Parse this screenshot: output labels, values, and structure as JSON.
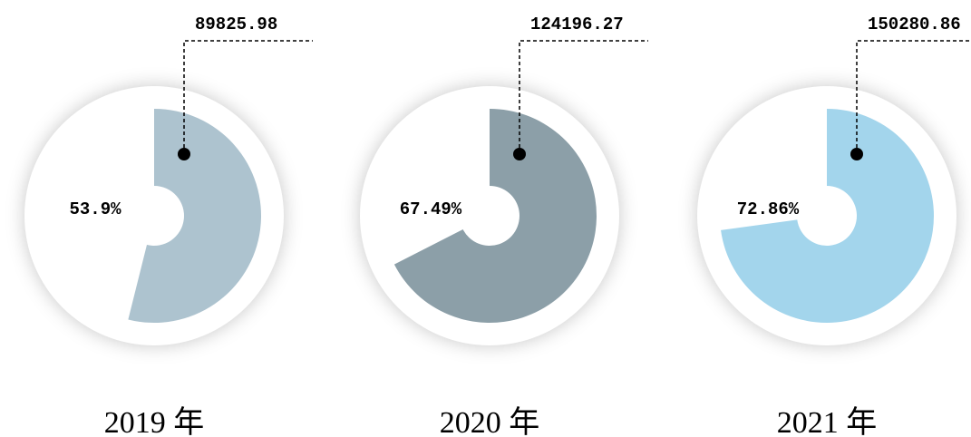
{
  "chart_data": [
    {
      "type": "donut",
      "title": "2019 年",
      "values": [
        53.9
      ],
      "value_labels": [
        "53.9%"
      ],
      "annotation": "89825.98",
      "color": "#adc3cf"
    },
    {
      "type": "donut",
      "title": "2020 年",
      "values": [
        67.49
      ],
      "value_labels": [
        "67.49%"
      ],
      "annotation": "124196.27",
      "color": "#8c9fa8"
    },
    {
      "type": "donut",
      "title": "2021 年",
      "values": [
        72.86
      ],
      "value_labels": [
        "72.86%"
      ],
      "annotation": "150280.86",
      "color": "#a3d5ec"
    }
  ]
}
